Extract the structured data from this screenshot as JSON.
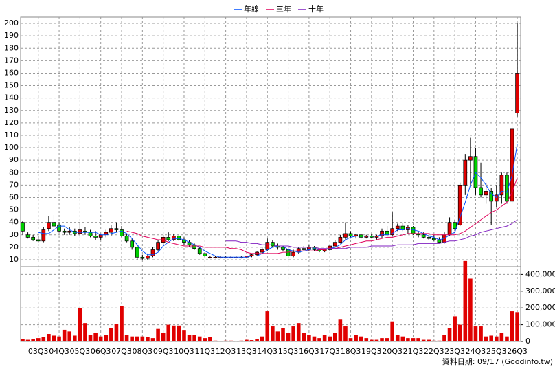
{
  "chart_data": {
    "type": "candlestick",
    "legend": "top",
    "grid": true,
    "note": "資料日期: 09/17  (Goodinfo.tw)",
    "categories": [
      null,
      null,
      null,
      "03Q3",
      null,
      null,
      null,
      "04Q3",
      null,
      null,
      null,
      "05Q3",
      null,
      null,
      null,
      "06Q3",
      null,
      null,
      null,
      "07Q3",
      null,
      null,
      null,
      "08Q3",
      null,
      null,
      null,
      "09Q3",
      null,
      null,
      null,
      "10Q3",
      null,
      null,
      null,
      "11Q3",
      null,
      null,
      null,
      "12Q3",
      null,
      null,
      null,
      "13Q3",
      null,
      null,
      null,
      "14Q3",
      null,
      null,
      null,
      "15Q3",
      null,
      null,
      null,
      "16Q3",
      null,
      null,
      null,
      "17Q3",
      null,
      null,
      null,
      "18Q3",
      null,
      null,
      null,
      "19Q3",
      null,
      null,
      null,
      "20Q3",
      null,
      null,
      null,
      "21Q3",
      null,
      null,
      null,
      "22Q3",
      null,
      null,
      null,
      "23Q3",
      null,
      null,
      null,
      "24Q3",
      null,
      null,
      null,
      "25Q3",
      null,
      null,
      null,
      "26Q3"
    ],
    "up_color": "#e00000",
    "down_color": "#00d000",
    "open": [
      40,
      30,
      28,
      26,
      25,
      35,
      40,
      38,
      33,
      32,
      33,
      31,
      33,
      32,
      29,
      28,
      30,
      32,
      35,
      34,
      29,
      25,
      20,
      12,
      11,
      13,
      18,
      24,
      28,
      26,
      29,
      26,
      24,
      22,
      19,
      15,
      12,
      12,
      12,
      12,
      12,
      12,
      12,
      12,
      13,
      14,
      16,
      18,
      24,
      21,
      20,
      18,
      13,
      16,
      19,
      18,
      20,
      18,
      17,
      18,
      21,
      24,
      28,
      31,
      29,
      30,
      28,
      29,
      28,
      29,
      33,
      30,
      35,
      37,
      34,
      36,
      31,
      30,
      28,
      27,
      26,
      24,
      30,
      40,
      38,
      70,
      90,
      93,
      68,
      62,
      65,
      57,
      62,
      78,
      57,
      128
    ],
    "high": [
      41,
      32,
      30,
      29,
      36,
      45,
      46,
      40,
      35,
      36,
      35,
      40,
      36,
      34,
      33,
      31,
      34,
      38,
      40,
      37,
      31,
      27,
      22,
      14,
      15,
      20,
      26,
      30,
      32,
      31,
      30,
      28,
      26,
      23,
      20,
      16,
      13,
      13,
      13,
      13,
      13,
      13,
      13,
      13,
      15,
      17,
      20,
      27,
      26,
      23,
      21,
      20,
      18,
      20,
      21,
      22,
      21,
      19,
      19,
      22,
      26,
      30,
      40,
      33,
      31,
      31,
      30,
      31,
      30,
      35,
      37,
      48,
      39,
      40,
      38,
      37,
      33,
      32,
      30,
      30,
      28,
      32,
      44,
      42,
      72,
      95,
      108,
      100,
      88,
      72,
      68,
      70,
      80,
      80,
      125,
      200
    ],
    "low": [
      30,
      27,
      25,
      24,
      24,
      33,
      36,
      32,
      30,
      30,
      29,
      29,
      30,
      28,
      26,
      26,
      28,
      29,
      32,
      28,
      24,
      18,
      10,
      10,
      10,
      12,
      17,
      22,
      25,
      25,
      25,
      22,
      20,
      18,
      14,
      12,
      11,
      11,
      11,
      11,
      11,
      11,
      11,
      11,
      12,
      13,
      15,
      17,
      20,
      18,
      17,
      11,
      12,
      15,
      17,
      17,
      17,
      16,
      16,
      17,
      20,
      23,
      26,
      27,
      27,
      27,
      27,
      27,
      26,
      27,
      29,
      29,
      33,
      33,
      31,
      30,
      28,
      27,
      26,
      25,
      23,
      23,
      29,
      33,
      37,
      62,
      70,
      62,
      60,
      55,
      38,
      52,
      55,
      55,
      55,
      125
    ],
    "close": [
      33,
      28,
      26,
      25,
      34,
      40,
      37,
      33,
      32,
      33,
      31,
      34,
      32,
      29,
      28,
      30,
      32,
      35,
      34,
      29,
      25,
      20,
      12,
      11,
      13,
      18,
      24,
      28,
      26,
      29,
      26,
      24,
      22,
      19,
      15,
      13,
      12,
      12,
      12,
      12,
      12,
      12,
      12,
      13,
      14,
      16,
      18,
      24,
      21,
      20,
      18,
      13,
      16,
      19,
      18,
      20,
      18,
      17,
      18,
      21,
      24,
      28,
      31,
      29,
      30,
      28,
      29,
      28,
      29,
      33,
      30,
      35,
      37,
      34,
      36,
      31,
      30,
      28,
      27,
      26,
      24,
      30,
      40,
      35,
      70,
      90,
      93,
      68,
      62,
      65,
      57,
      62,
      78,
      57,
      115,
      160
    ],
    "series": [
      {
        "name": "年線",
        "color": "#0050ff",
        "values": [
          null,
          null,
          null,
          32,
          31,
          31,
          34,
          37,
          37,
          34,
          32,
          32,
          32,
          32,
          32,
          30,
          30,
          31,
          32,
          33,
          31,
          27,
          22,
          17,
          14,
          14,
          16,
          21,
          24,
          27,
          27,
          26,
          24,
          22,
          20,
          17,
          15,
          13,
          12,
          12,
          12,
          12,
          12,
          12,
          13,
          13,
          15,
          18,
          20,
          21,
          21,
          18,
          17,
          16,
          17,
          18,
          19,
          18,
          18,
          19,
          20,
          22,
          26,
          28,
          29,
          29,
          29,
          29,
          29,
          30,
          30,
          31,
          34,
          34,
          35,
          34,
          33,
          31,
          29,
          28,
          26,
          27,
          30,
          32,
          44,
          56,
          70,
          80,
          76,
          70,
          63,
          60,
          65,
          64,
          78,
          103
        ]
      },
      {
        "name": "三年",
        "color": "#e0005a",
        "values": [
          null,
          null,
          null,
          null,
          null,
          null,
          null,
          null,
          null,
          null,
          null,
          null,
          null,
          null,
          null,
          null,
          null,
          null,
          null,
          null,
          33,
          32,
          31,
          29,
          28,
          27,
          26,
          26,
          24,
          23,
          22,
          21,
          21,
          21,
          21,
          20,
          20,
          20,
          20,
          20,
          19,
          19,
          18,
          16,
          15,
          15,
          15,
          15,
          15,
          15,
          16,
          16,
          17,
          17,
          17,
          17,
          17,
          18,
          18,
          19,
          19,
          20,
          21,
          22,
          23,
          24,
          25,
          25,
          26,
          27,
          28,
          28,
          29,
          30,
          31,
          31,
          31,
          31,
          31,
          30,
          30,
          30,
          30,
          30,
          31,
          33,
          36,
          39,
          42,
          45,
          48,
          50,
          53,
          56,
          64,
          76
        ]
      },
      {
        "name": "十年",
        "color": "#8020c0",
        "values": [
          null,
          null,
          null,
          null,
          null,
          null,
          null,
          null,
          null,
          null,
          null,
          null,
          null,
          null,
          null,
          null,
          null,
          null,
          null,
          null,
          null,
          null,
          null,
          null,
          null,
          null,
          null,
          null,
          null,
          null,
          null,
          null,
          null,
          null,
          null,
          null,
          null,
          null,
          null,
          25,
          25,
          25,
          24,
          24,
          23,
          23,
          22,
          22,
          22,
          21,
          21,
          21,
          20,
          20,
          20,
          20,
          20,
          19,
          19,
          19,
          19,
          19,
          19,
          20,
          20,
          20,
          20,
          21,
          21,
          21,
          21,
          21,
          22,
          22,
          22,
          22,
          23,
          23,
          23,
          23,
          23,
          24,
          25,
          25,
          26,
          27,
          29,
          30,
          32,
          33,
          34,
          35,
          36,
          37,
          39,
          42
        ]
      }
    ],
    "volume": {
      "color": "#e00000",
      "values": [
        15000,
        10000,
        15000,
        20000,
        25000,
        45000,
        35000,
        30000,
        70000,
        60000,
        35000,
        200000,
        110000,
        40000,
        50000,
        30000,
        40000,
        80000,
        105000,
        210000,
        40000,
        30000,
        30000,
        30000,
        25000,
        20000,
        75000,
        50000,
        100000,
        95000,
        95000,
        65000,
        40000,
        40000,
        30000,
        20000,
        25000,
        5000,
        3000,
        5000,
        5000,
        3000,
        5000,
        10000,
        8000,
        15000,
        30000,
        180000,
        90000,
        60000,
        80000,
        50000,
        90000,
        110000,
        50000,
        40000,
        30000,
        20000,
        40000,
        30000,
        50000,
        130000,
        90000,
        20000,
        40000,
        30000,
        20000,
        10000,
        10000,
        20000,
        20000,
        120000,
        40000,
        30000,
        20000,
        20000,
        20000,
        10000,
        10000,
        5000,
        5000,
        40000,
        80000,
        150000,
        100000,
        480000,
        375000,
        90000,
        90000,
        30000,
        35000,
        30000,
        50000,
        30000,
        180000,
        175000
      ]
    },
    "ylim": [
      5,
      205
    ],
    "yticks": [
      10,
      20,
      30,
      40,
      50,
      60,
      70,
      80,
      90,
      100,
      110,
      120,
      130,
      140,
      150,
      160,
      170,
      180,
      190,
      200
    ],
    "y2lim": [
      0,
      500000
    ],
    "y2ticks": [
      0,
      {
        "value": 100000,
        "label": "100,000"
      },
      {
        "value": 200000,
        "label": "200,000"
      },
      {
        "value": 300000,
        "label": "300,000"
      },
      {
        "value": 400000,
        "label": "400,000"
      }
    ]
  }
}
